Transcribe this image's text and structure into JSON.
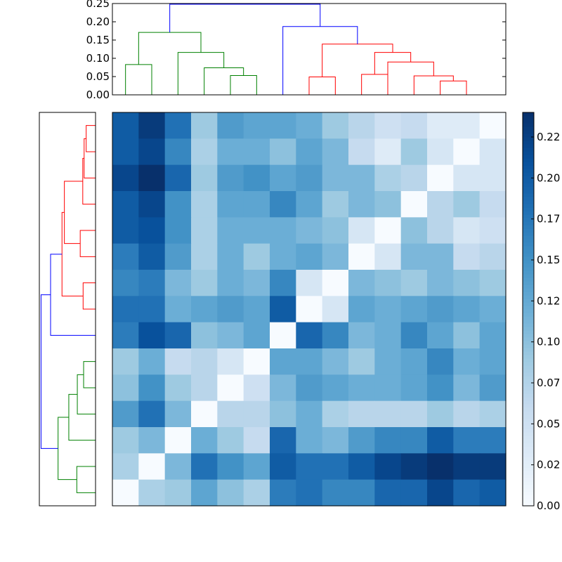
{
  "chart_data": {
    "type": "heatmap",
    "title": "",
    "colormap": "Blues",
    "value_range": [
      0.0,
      0.24
    ],
    "size": 15,
    "heatmap_values": [
      [
        0.2,
        0.23,
        0.18,
        0.09,
        0.14,
        0.13,
        0.13,
        0.12,
        0.09,
        0.07,
        0.05,
        0.06,
        0.03,
        0.03,
        0.0
      ],
      [
        0.2,
        0.22,
        0.16,
        0.08,
        0.12,
        0.12,
        0.1,
        0.13,
        0.11,
        0.06,
        0.03,
        0.09,
        0.04,
        0.0,
        0.04
      ],
      [
        0.22,
        0.24,
        0.19,
        0.09,
        0.14,
        0.15,
        0.13,
        0.14,
        0.11,
        0.11,
        0.08,
        0.07,
        0.0,
        0.04,
        0.04
      ],
      [
        0.2,
        0.22,
        0.15,
        0.08,
        0.13,
        0.13,
        0.16,
        0.13,
        0.09,
        0.11,
        0.1,
        0.0,
        0.07,
        0.09,
        0.06
      ],
      [
        0.2,
        0.21,
        0.15,
        0.08,
        0.12,
        0.12,
        0.12,
        0.11,
        0.1,
        0.04,
        0.0,
        0.1,
        0.07,
        0.04,
        0.05
      ],
      [
        0.17,
        0.2,
        0.14,
        0.08,
        0.12,
        0.09,
        0.12,
        0.13,
        0.11,
        0.0,
        0.04,
        0.11,
        0.11,
        0.06,
        0.07
      ],
      [
        0.16,
        0.17,
        0.11,
        0.09,
        0.12,
        0.11,
        0.16,
        0.04,
        0.0,
        0.11,
        0.1,
        0.09,
        0.11,
        0.1,
        0.09
      ],
      [
        0.18,
        0.18,
        0.12,
        0.13,
        0.14,
        0.13,
        0.2,
        0.0,
        0.04,
        0.13,
        0.12,
        0.13,
        0.14,
        0.13,
        0.12
      ],
      [
        0.17,
        0.21,
        0.19,
        0.1,
        0.11,
        0.13,
        0.0,
        0.19,
        0.16,
        0.11,
        0.12,
        0.16,
        0.13,
        0.1,
        0.13
      ],
      [
        0.09,
        0.12,
        0.06,
        0.07,
        0.04,
        0.0,
        0.13,
        0.13,
        0.11,
        0.09,
        0.12,
        0.13,
        0.16,
        0.12,
        0.13
      ],
      [
        0.1,
        0.15,
        0.09,
        0.07,
        0.0,
        0.05,
        0.11,
        0.14,
        0.13,
        0.12,
        0.12,
        0.13,
        0.15,
        0.11,
        0.14
      ],
      [
        0.14,
        0.18,
        0.11,
        0.0,
        0.07,
        0.07,
        0.1,
        0.12,
        0.08,
        0.07,
        0.07,
        0.07,
        0.09,
        0.07,
        0.08
      ],
      [
        0.09,
        0.11,
        0.0,
        0.12,
        0.09,
        0.06,
        0.19,
        0.12,
        0.11,
        0.14,
        0.16,
        0.16,
        0.2,
        0.17,
        0.17
      ],
      [
        0.08,
        0.0,
        0.11,
        0.18,
        0.15,
        0.13,
        0.2,
        0.18,
        0.18,
        0.2,
        0.22,
        0.23,
        0.24,
        0.23,
        0.23
      ],
      [
        0.0,
        0.08,
        0.09,
        0.13,
        0.1,
        0.08,
        0.17,
        0.18,
        0.16,
        0.16,
        0.19,
        0.19,
        0.22,
        0.19,
        0.2
      ]
    ],
    "top_dendrogram": {
      "ylim": [
        0,
        0.25
      ],
      "yticks": [
        "0.00",
        "0.05",
        "0.10",
        "0.15",
        "0.20",
        "0.25"
      ],
      "links": [
        {
          "a": 0.5,
          "ha": 0.0,
          "b": 1.5,
          "hb": 0.0,
          "h": 0.083,
          "color": "#008000"
        },
        {
          "a": 4.5,
          "ha": 0.0,
          "b": 5.5,
          "hb": 0.0,
          "h": 0.053,
          "color": "#008000"
        },
        {
          "a": 3.5,
          "ha": 0.0,
          "b": 5.0,
          "hb": 0.053,
          "h": 0.074,
          "color": "#008000"
        },
        {
          "a": 2.5,
          "ha": 0.0,
          "b": 4.25,
          "hb": 0.074,
          "h": 0.116,
          "color": "#008000"
        },
        {
          "a": 1.0,
          "ha": 0.083,
          "b": 3.375,
          "hb": 0.116,
          "h": 0.171,
          "color": "#008000"
        },
        {
          "a": 7.5,
          "ha": 0.0,
          "b": 8.5,
          "hb": 0.0,
          "h": 0.049,
          "color": "#ff0000"
        },
        {
          "a": 9.5,
          "ha": 0.0,
          "b": 10.5,
          "hb": 0.0,
          "h": 0.056,
          "color": "#ff0000"
        },
        {
          "a": 12.5,
          "ha": 0.0,
          "b": 13.5,
          "hb": 0.0,
          "h": 0.038,
          "color": "#ff0000"
        },
        {
          "a": 11.5,
          "ha": 0.0,
          "b": 13.0,
          "hb": 0.038,
          "h": 0.052,
          "color": "#ff0000"
        },
        {
          "a": 10.5,
          "ha": 0.0,
          "b": 12.25,
          "hb": 0.052,
          "h": 0.09,
          "color": "#ff0000"
        },
        {
          "a": 10.0,
          "ha": 0.056,
          "b": 11.375,
          "hb": 0.09,
          "h": 0.116,
          "color": "#ff0000"
        },
        {
          "a": 8.0,
          "ha": 0.049,
          "b": 10.6875,
          "hb": 0.116,
          "h": 0.139,
          "color": "#ff0000"
        },
        {
          "a": 6.5,
          "ha": 0.0,
          "b": 9.34375,
          "hb": 0.139,
          "h": 0.187,
          "color": "#0000ff"
        },
        {
          "a": 2.1875,
          "ha": 0.171,
          "b": 7.921875,
          "hb": 0.187,
          "h": 0.248,
          "color": "#0000ff"
        }
      ]
    },
    "left_dendrogram": {
      "links": [
        {
          "a": 0.5,
          "ha": 0.0,
          "b": 1.5,
          "hb": 0.0,
          "h": 0.055,
          "color": "#ff0000"
        },
        {
          "a": 2.5,
          "ha": 0.0,
          "b": 1.0,
          "hb": 0.055,
          "h": 0.067,
          "color": "#ff0000"
        },
        {
          "a": 3.5,
          "ha": 0.0,
          "b": 1.75,
          "hb": 0.067,
          "h": 0.075,
          "color": "#ff0000"
        },
        {
          "a": 4.5,
          "ha": 0.0,
          "b": 5.5,
          "hb": 0.0,
          "h": 0.09,
          "color": "#ff0000"
        },
        {
          "a": 2.625,
          "ha": 0.075,
          "b": 5.0,
          "hb": 0.09,
          "h": 0.183,
          "color": "#ff0000"
        },
        {
          "a": 6.5,
          "ha": 0.0,
          "b": 7.5,
          "hb": 0.0,
          "h": 0.073,
          "color": "#ff0000"
        },
        {
          "a": 3.8125,
          "ha": 0.183,
          "b": 7.0,
          "hb": 0.073,
          "h": 0.197,
          "color": "#ff0000"
        },
        {
          "a": 5.40625,
          "ha": 0.197,
          "b": 8.5,
          "hb": 0.0,
          "h": 0.264,
          "color": "#0000ff"
        },
        {
          "a": 9.5,
          "ha": 0.0,
          "b": 10.5,
          "hb": 0.0,
          "h": 0.07,
          "color": "#008000"
        },
        {
          "a": 11.5,
          "ha": 0.0,
          "b": 10.0,
          "hb": 0.07,
          "h": 0.107,
          "color": "#008000"
        },
        {
          "a": 12.5,
          "ha": 0.0,
          "b": 10.75,
          "hb": 0.107,
          "h": 0.157,
          "color": "#008000"
        },
        {
          "a": 13.5,
          "ha": 0.0,
          "b": 14.5,
          "hb": 0.0,
          "h": 0.11,
          "color": "#008000"
        },
        {
          "a": 11.625,
          "ha": 0.157,
          "b": 14.0,
          "hb": 0.11,
          "h": 0.22,
          "color": "#008000"
        },
        {
          "a": 6.953125,
          "ha": 0.264,
          "b": 12.8125,
          "hb": 0.22,
          "h": 0.32,
          "color": "#0000ff"
        }
      ],
      "hmax": 0.33
    },
    "colorbar": {
      "range": [
        0.0,
        0.24
      ],
      "ticks": [
        {
          "value": 0.0,
          "label": "0.00"
        },
        {
          "value": 0.025,
          "label": "0.02"
        },
        {
          "value": 0.05,
          "label": "0.05"
        },
        {
          "value": 0.075,
          "label": "0.07"
        },
        {
          "value": 0.1,
          "label": "0.10"
        },
        {
          "value": 0.125,
          "label": "0.12"
        },
        {
          "value": 0.15,
          "label": "0.15"
        },
        {
          "value": 0.175,
          "label": "0.17"
        },
        {
          "value": 0.2,
          "label": "0.20"
        },
        {
          "value": 0.225,
          "label": "0.22"
        }
      ]
    }
  }
}
